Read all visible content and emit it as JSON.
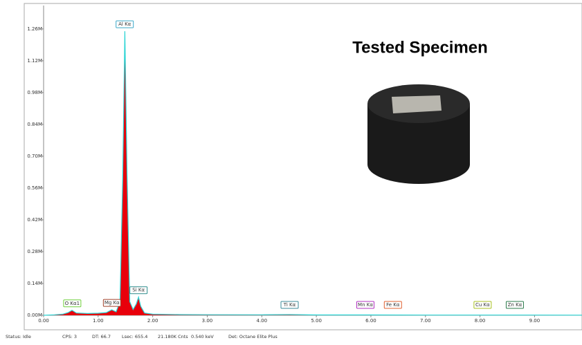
{
  "chart_data": {
    "type": "spectrum",
    "fill_color": "#e8000b",
    "line_color": "#2ad4d4",
    "xlim": [
      0,
      9.87
    ],
    "ylim": [
      0,
      1363000
    ],
    "xticks": [
      {
        "value": 0,
        "label": "0.00"
      },
      {
        "value": 1,
        "label": "1.00"
      },
      {
        "value": 2,
        "label": "2.00"
      },
      {
        "value": 3,
        "label": "3.00"
      },
      {
        "value": 4,
        "label": "4.00"
      },
      {
        "value": 5,
        "label": "5.00"
      },
      {
        "value": 6,
        "label": "6.00"
      },
      {
        "value": 7,
        "label": "7.00"
      },
      {
        "value": 8,
        "label": "8.00"
      },
      {
        "value": 9,
        "label": "9.00"
      }
    ],
    "yticks": [
      {
        "value": 0,
        "label": "0.00M"
      },
      {
        "value": 140000,
        "label": "0.14M"
      },
      {
        "value": 280000,
        "label": "0.28M"
      },
      {
        "value": 420000,
        "label": "0.42M"
      },
      {
        "value": 560000,
        "label": "0.56M"
      },
      {
        "value": 700000,
        "label": "0.70M"
      },
      {
        "value": 840000,
        "label": "0.84M"
      },
      {
        "value": 980000,
        "label": "0.98M"
      },
      {
        "value": 1120000,
        "label": "1.12M"
      },
      {
        "value": 1260000,
        "label": "1.26M"
      }
    ],
    "x": [
      0,
      0.2,
      0.35,
      0.45,
      0.52,
      0.6,
      0.8,
      1.0,
      1.15,
      1.25,
      1.33,
      1.4,
      1.45,
      1.49,
      1.53,
      1.58,
      1.64,
      1.7,
      1.74,
      1.78,
      1.85,
      2.0,
      2.5,
      3.0,
      4.0,
      4.51,
      5.0,
      6.0,
      7.0,
      8.0,
      9.0,
      9.87
    ],
    "values": [
      0,
      2000,
      5000,
      12000,
      22000,
      10000,
      8000,
      9000,
      12000,
      24000,
      15000,
      60000,
      600000,
      1250000,
      620000,
      60000,
      25000,
      50000,
      80000,
      40000,
      10000,
      5000,
      3000,
      2500,
      2000,
      3000,
      1500,
      1500,
      1000,
      1000,
      800,
      500
    ],
    "peaks": [
      {
        "label": "O Kα1",
        "x": 0.525,
        "color": "#6fcf3a"
      },
      {
        "label": "Mg Kα",
        "x": 1.254,
        "color": "#a0402a"
      },
      {
        "label": "Al Kα",
        "x": 1.487,
        "color": "#3aa8c8"
      },
      {
        "label": "Si Kα",
        "x": 1.74,
        "color": "#2a8a8a"
      },
      {
        "label": "Ti Kα",
        "x": 4.51,
        "color": "#3a8a9a"
      },
      {
        "label": "Mn Kα",
        "x": 5.899,
        "color": "#b030c0"
      },
      {
        "label": "Fe Kα",
        "x": 6.404,
        "color": "#e06030"
      },
      {
        "label": "Cu Kα",
        "x": 8.048,
        "color": "#a8c020"
      },
      {
        "label": "Zn Kα",
        "x": 8.639,
        "color": "#2a7a4a"
      }
    ],
    "inset_title": "Tested Specimen"
  },
  "status": [
    "Status: Idle",
    "CPS: 3",
    "DT: 66.7",
    "Lsec: 655.4",
    "21.180K Cnts",
    "0.540 keV",
    "Det: Octane Elite Plus"
  ]
}
